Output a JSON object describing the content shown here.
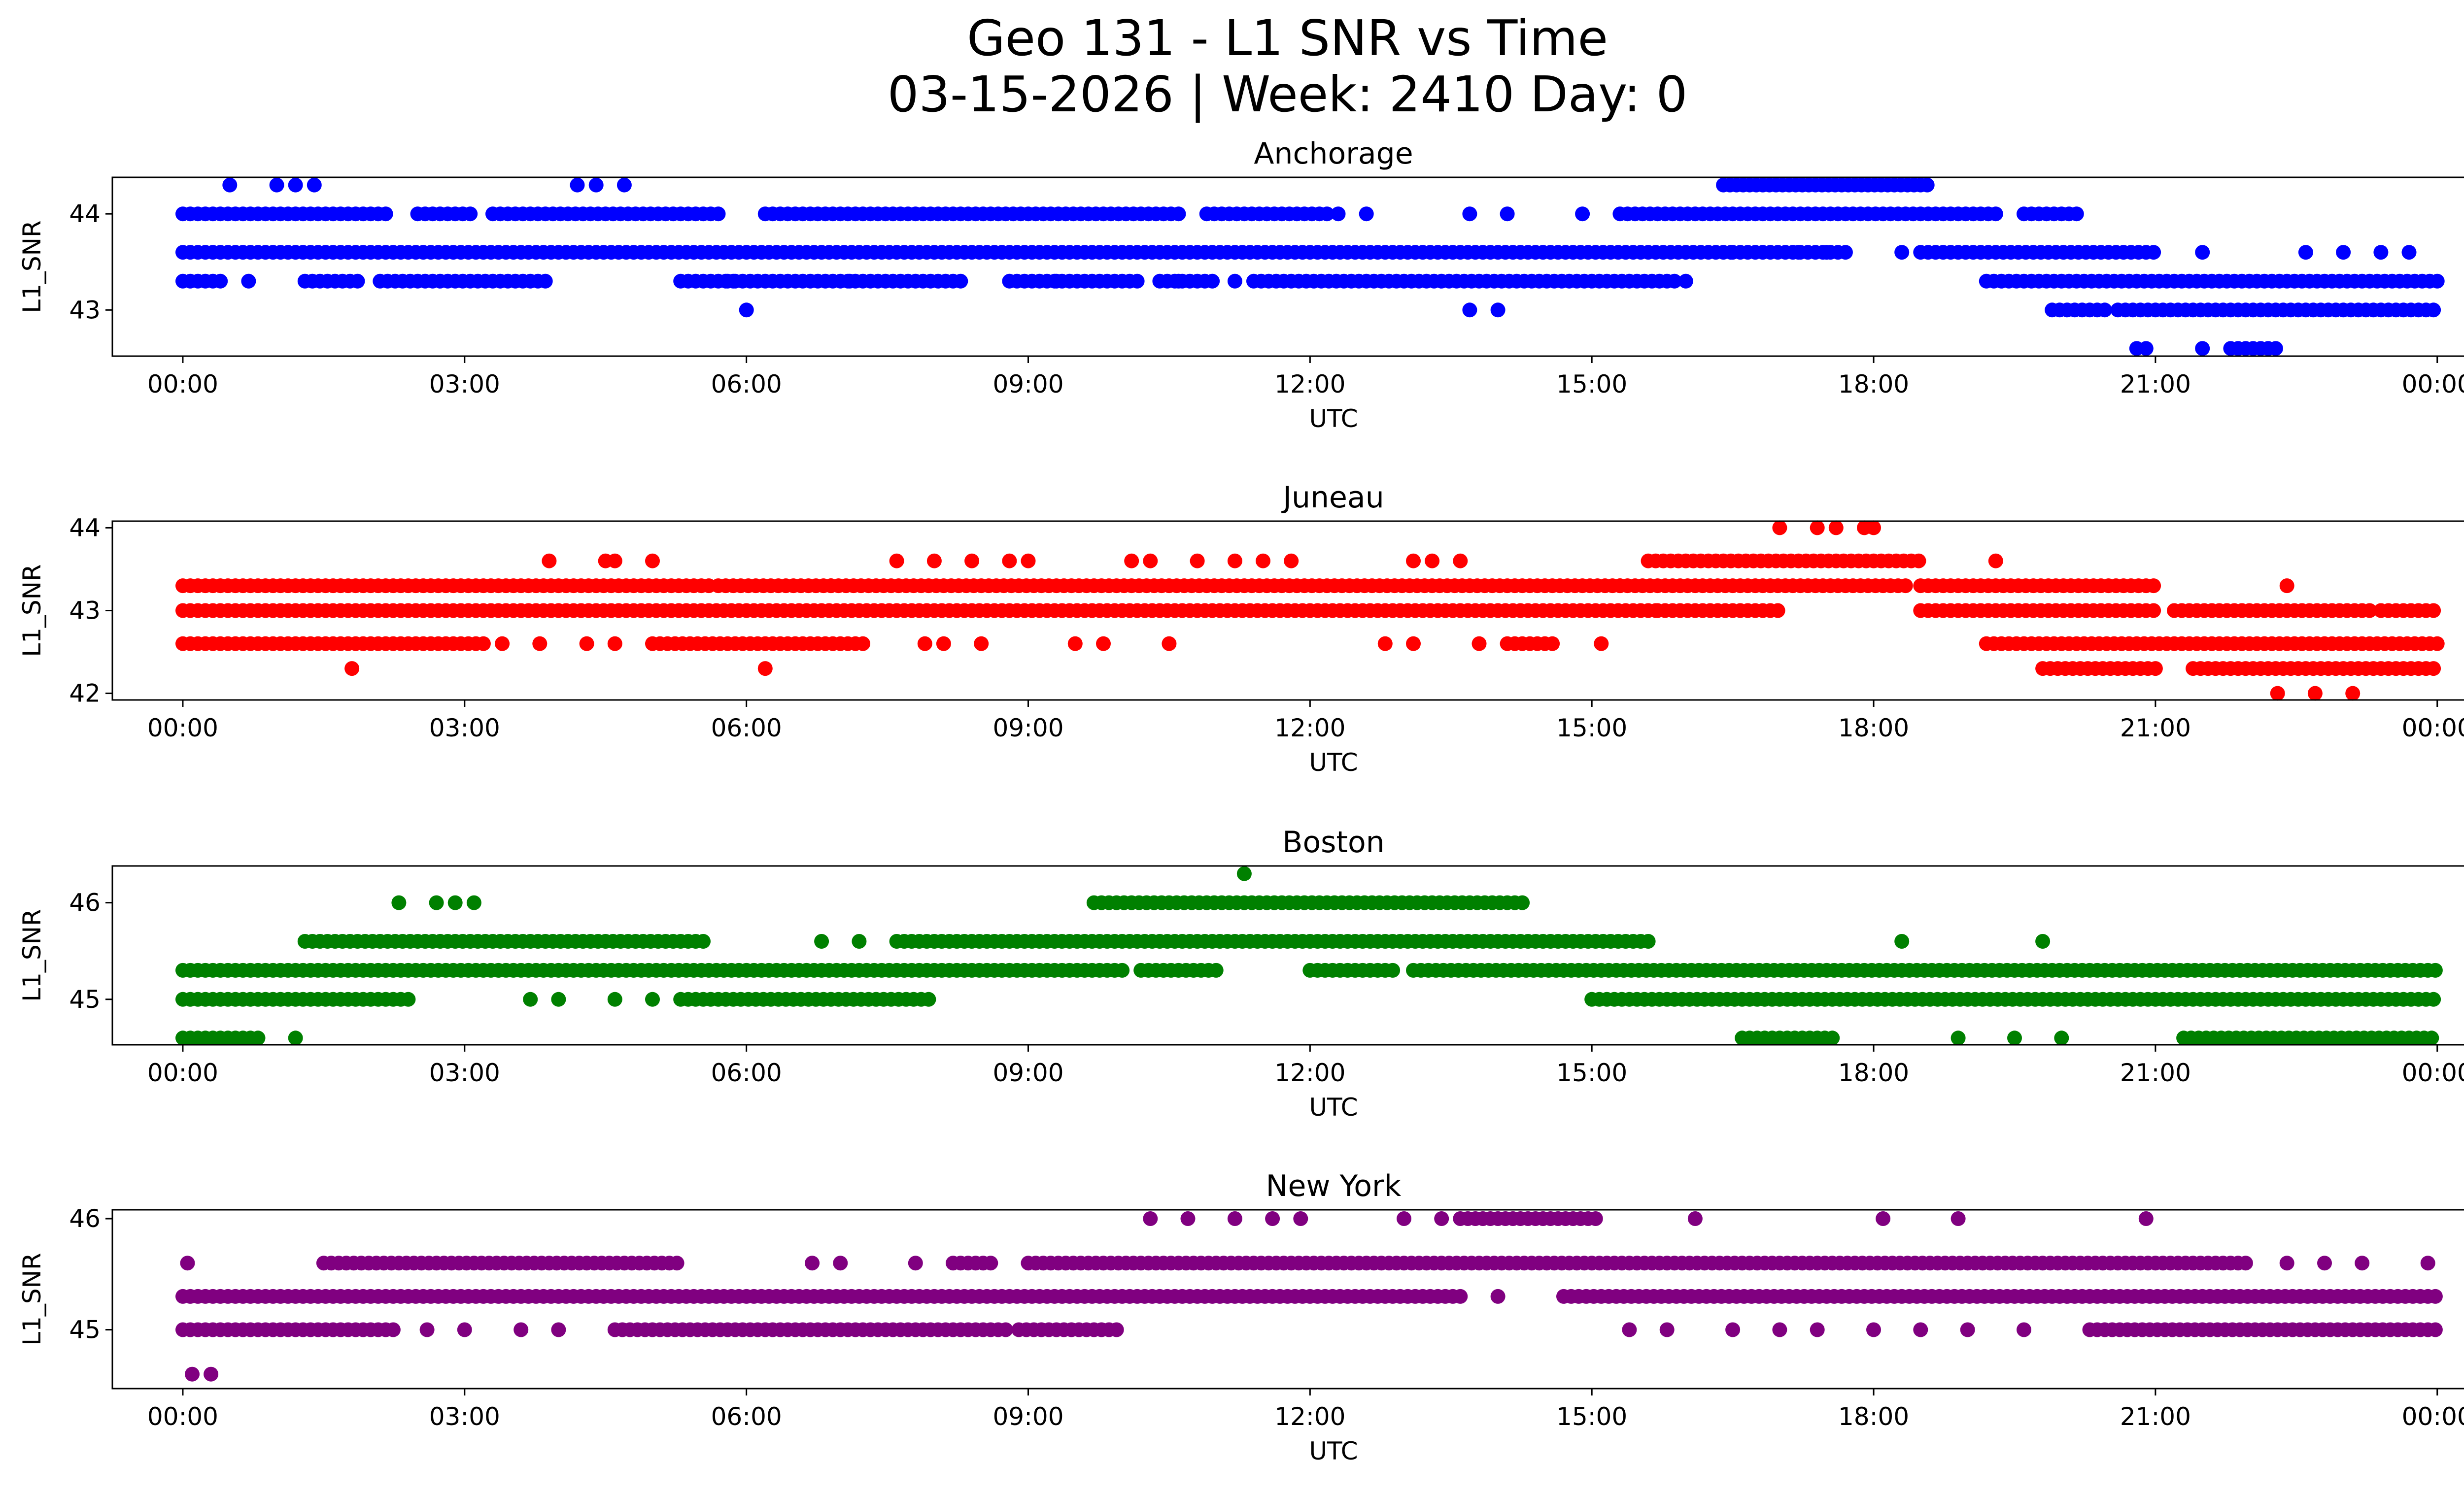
{
  "figure": {
    "title_line1": "Geo 131 - L1 SNR vs Time",
    "title_line2": "03-15-2026 | Week: 2410 Day: 0"
  },
  "chart_data": [
    {
      "type": "scatter",
      "title": "Anchorage",
      "xlabel": "UTC",
      "ylabel": "L1_SNR",
      "color": "#0000ff",
      "xlim": [
        -0.75,
        25.25
      ],
      "ylim": [
        42.52,
        44.38
      ],
      "yticks": [
        43,
        44
      ],
      "ytick_labels": [
        "43",
        "44"
      ],
      "xticks": [
        0,
        3,
        6,
        9,
        12,
        15,
        18,
        21,
        24
      ],
      "xtick_labels": [
        "00:00",
        "03:00",
        "06:00",
        "09:00",
        "12:00",
        "15:00",
        "18:00",
        "21:00",
        "00:00"
      ],
      "bands": [
        {
          "y": 43.6,
          "ranges": [
            [
              0.0,
              16.5
            ],
            [
              16.5,
              17.7
            ],
            [
              18.5,
              21.0
            ]
          ],
          "spacing": 0.08
        },
        {
          "y": 44.0,
          "ranges": [
            [
              0.0,
              2.2
            ],
            [
              2.5,
              3.1
            ],
            [
              3.3,
              5.7
            ],
            [
              6.2,
              10.6
            ],
            [
              10.9,
              12.2
            ],
            [
              15.3,
              19.3
            ],
            [
              19.6,
              20.2
            ]
          ],
          "spacing": 0.08
        },
        {
          "y": 43.3,
          "ranges": [
            [
              0.0,
              0.4
            ],
            [
              1.3,
              1.9
            ],
            [
              2.1,
              3.9
            ],
            [
              5.3,
              5.9
            ],
            [
              5.8,
              8.3
            ],
            [
              8.8,
              10.2
            ],
            [
              10.4,
              11.0
            ],
            [
              11.4,
              15.9
            ],
            [
              19.2,
              24.0
            ]
          ],
          "spacing": 0.08
        },
        {
          "y": 44.3,
          "ranges": [
            [
              16.4,
              18.6
            ]
          ],
          "spacing": 0.07
        },
        {
          "y": 43.0,
          "ranges": [
            [
              19.9,
              20.5
            ],
            [
              20.6,
              24.0
            ]
          ],
          "spacing": 0.08
        },
        {
          "y": 42.6,
          "ranges": [
            [
              21.8,
              22.3
            ]
          ],
          "spacing": 0.08
        }
      ],
      "points": [
        [
          0.5,
          44.3
        ],
        [
          1.0,
          44.3
        ],
        [
          1.2,
          44.3
        ],
        [
          1.4,
          44.3
        ],
        [
          4.2,
          44.3
        ],
        [
          4.4,
          44.3
        ],
        [
          4.7,
          44.3
        ],
        [
          0.7,
          43.3
        ],
        [
          6.0,
          43.0
        ],
        [
          13.7,
          43.0
        ],
        [
          14.0,
          43.0
        ],
        [
          13.7,
          44.0
        ],
        [
          14.1,
          44.0
        ],
        [
          12.6,
          44.0
        ],
        [
          12.3,
          44.0
        ],
        [
          14.9,
          44.0
        ],
        [
          17.2,
          43.6
        ],
        [
          17.5,
          43.6
        ],
        [
          18.3,
          43.6
        ],
        [
          21.5,
          43.6
        ],
        [
          22.6,
          43.6
        ],
        [
          23.0,
          43.6
        ],
        [
          23.4,
          43.6
        ],
        [
          23.7,
          43.6
        ],
        [
          20.8,
          42.6
        ],
        [
          20.9,
          42.6
        ],
        [
          21.5,
          42.6
        ],
        [
          11.2,
          43.3
        ],
        [
          16.0,
          43.3
        ],
        [
          10.6,
          43.3
        ],
        [
          9.3,
          43.3
        ],
        [
          7.1,
          43.3
        ]
      ]
    },
    {
      "type": "scatter",
      "title": "Juneau",
      "xlabel": "UTC",
      "ylabel": "L1_SNR",
      "color": "#ff0000",
      "xlim": [
        -0.75,
        25.25
      ],
      "ylim": [
        41.92,
        44.08
      ],
      "yticks": [
        42,
        43,
        44
      ],
      "ytick_labels": [
        "42",
        "43",
        "44"
      ],
      "xticks": [
        0,
        3,
        6,
        9,
        12,
        15,
        18,
        21,
        24
      ],
      "xtick_labels": [
        "00:00",
        "03:00",
        "06:00",
        "09:00",
        "12:00",
        "15:00",
        "18:00",
        "21:00",
        "00:00"
      ],
      "bands": [
        {
          "y": 43.0,
          "ranges": [
            [
              0.0,
              15.7
            ],
            [
              15.7,
              17.0
            ],
            [
              18.5,
              21.0
            ],
            [
              21.2,
              23.3
            ],
            [
              23.4,
              24.0
            ]
          ],
          "spacing": 0.08
        },
        {
          "y": 43.3,
          "ranges": [
            [
              0.0,
              5.6
            ],
            [
              5.7,
              6.9
            ],
            [
              6.9,
              15.3
            ],
            [
              15.3,
              18.4
            ],
            [
              18.5,
              21.0
            ]
          ],
          "spacing": 0.08
        },
        {
          "y": 42.6,
          "ranges": [
            [
              0.0,
              3.2
            ],
            [
              5.0,
              7.3
            ],
            [
              14.1,
              14.6
            ],
            [
              19.2,
              24.0
            ]
          ],
          "spacing": 0.08
        },
        {
          "y": 43.6,
          "ranges": [
            [
              15.6,
              18.5
            ]
          ],
          "spacing": 0.08
        },
        {
          "y": 42.3,
          "ranges": [
            [
              19.8,
              21.0
            ],
            [
              21.4,
              24.0
            ]
          ],
          "spacing": 0.08
        }
      ],
      "points": [
        [
          3.9,
          43.6
        ],
        [
          4.5,
          43.6
        ],
        [
          4.6,
          43.6
        ],
        [
          5.0,
          43.6
        ],
        [
          7.6,
          43.6
        ],
        [
          8.0,
          43.6
        ],
        [
          8.4,
          43.6
        ],
        [
          8.8,
          43.6
        ],
        [
          9.0,
          43.6
        ],
        [
          10.1,
          43.6
        ],
        [
          10.3,
          43.6
        ],
        [
          10.8,
          43.6
        ],
        [
          11.2,
          43.6
        ],
        [
          11.5,
          43.6
        ],
        [
          11.8,
          43.6
        ],
        [
          13.1,
          43.6
        ],
        [
          13.3,
          43.6
        ],
        [
          13.6,
          43.6
        ],
        [
          19.3,
          43.6
        ],
        [
          17.0,
          44.0
        ],
        [
          17.4,
          44.0
        ],
        [
          17.6,
          44.0
        ],
        [
          17.9,
          44.0
        ],
        [
          18.0,
          44.0
        ],
        [
          22.4,
          43.3
        ],
        [
          1.8,
          42.3
        ],
        [
          6.2,
          42.3
        ],
        [
          22.3,
          42.0
        ],
        [
          22.7,
          42.0
        ],
        [
          23.1,
          42.0
        ],
        [
          3.4,
          42.6
        ],
        [
          3.8,
          42.6
        ],
        [
          4.3,
          42.6
        ],
        [
          4.6,
          42.6
        ],
        [
          8.1,
          42.6
        ],
        [
          9.5,
          42.6
        ],
        [
          9.8,
          42.6
        ],
        [
          10.5,
          42.6
        ],
        [
          12.8,
          42.6
        ],
        [
          13.1,
          42.6
        ],
        [
          13.8,
          42.6
        ],
        [
          15.1,
          42.6
        ],
        [
          8.5,
          42.6
        ],
        [
          7.9,
          42.6
        ]
      ]
    },
    {
      "type": "scatter",
      "title": "Boston",
      "xlabel": "UTC",
      "ylabel": "L1_SNR",
      "color": "#008000",
      "xlim": [
        -0.75,
        25.25
      ],
      "ylim": [
        44.53,
        46.38
      ],
      "yticks": [
        45,
        46
      ],
      "ytick_labels": [
        "45",
        "46"
      ],
      "xticks": [
        0,
        3,
        6,
        9,
        12,
        15,
        18,
        21,
        24
      ],
      "xtick_labels": [
        "00:00",
        "03:00",
        "06:00",
        "09:00",
        "12:00",
        "15:00",
        "18:00",
        "21:00",
        "00:00"
      ],
      "bands": [
        {
          "y": 45.3,
          "ranges": [
            [
              0.0,
              10.0
            ],
            [
              10.2,
              11.0
            ],
            [
              12.0,
              12.9
            ],
            [
              13.1,
              24.0
            ]
          ],
          "spacing": 0.08
        },
        {
          "y": 45.6,
          "ranges": [
            [
              1.3,
              5.6
            ],
            [
              7.6,
              15.6
            ]
          ],
          "spacing": 0.08
        },
        {
          "y": 45.0,
          "ranges": [
            [
              0.0,
              2.4
            ],
            [
              5.3,
              8.0
            ],
            [
              15.0,
              24.0
            ]
          ],
          "spacing": 0.08
        },
        {
          "y": 46.0,
          "ranges": [
            [
              9.7,
              14.3
            ]
          ],
          "spacing": 0.08
        },
        {
          "y": 44.6,
          "ranges": [
            [
              0.0,
              0.8
            ],
            [
              16.6,
              17.6
            ],
            [
              21.3,
              24.0
            ]
          ],
          "spacing": 0.08
        }
      ],
      "points": [
        [
          2.3,
          46.0
        ],
        [
          2.7,
          46.0
        ],
        [
          2.9,
          46.0
        ],
        [
          3.1,
          46.0
        ],
        [
          11.3,
          46.3
        ],
        [
          6.8,
          45.6
        ],
        [
          7.2,
          45.6
        ],
        [
          18.3,
          45.6
        ],
        [
          19.8,
          45.6
        ],
        [
          1.2,
          44.6
        ],
        [
          18.9,
          44.6
        ],
        [
          19.5,
          44.6
        ],
        [
          20.0,
          44.6
        ],
        [
          3.7,
          45.0
        ],
        [
          4.0,
          45.0
        ],
        [
          4.6,
          45.0
        ],
        [
          5.0,
          45.0
        ]
      ]
    },
    {
      "type": "scatter",
      "title": "New York",
      "xlabel": "UTC",
      "ylabel": "L1_SNR",
      "color": "#800080",
      "xlim": [
        -0.75,
        25.25
      ],
      "ylim": [
        44.47,
        46.08
      ],
      "yticks": [
        45,
        46
      ],
      "ytick_labels": [
        "45",
        "46"
      ],
      "xticks": [
        0,
        3,
        6,
        9,
        12,
        15,
        18,
        21,
        24
      ],
      "xtick_labels": [
        "00:00",
        "03:00",
        "06:00",
        "09:00",
        "12:00",
        "15:00",
        "18:00",
        "21:00",
        "00:00"
      ],
      "bands": [
        {
          "y": 45.3,
          "ranges": [
            [
              0.0,
              13.6
            ],
            [
              14.7,
              24.0
            ]
          ],
          "spacing": 0.08
        },
        {
          "y": 45.0,
          "ranges": [
            [
              0.0,
              2.3
            ],
            [
              4.6,
              8.8
            ],
            [
              8.9,
              10.0
            ],
            [
              20.3,
              24.0
            ]
          ],
          "spacing": 0.08
        },
        {
          "y": 45.6,
          "ranges": [
            [
              1.5,
              5.3
            ],
            [
              8.2,
              8.6
            ],
            [
              9.0,
              22.0
            ]
          ],
          "spacing": 0.08
        },
        {
          "y": 46.0,
          "ranges": [
            [
              13.6,
              15.1
            ]
          ],
          "spacing": 0.08
        }
      ],
      "points": [
        [
          0.05,
          45.6
        ],
        [
          6.7,
          45.6
        ],
        [
          7.0,
          45.6
        ],
        [
          7.8,
          45.6
        ],
        [
          22.4,
          45.6
        ],
        [
          22.8,
          45.6
        ],
        [
          23.2,
          45.6
        ],
        [
          23.9,
          45.6
        ],
        [
          10.3,
          46.0
        ],
        [
          10.7,
          46.0
        ],
        [
          11.2,
          46.0
        ],
        [
          11.6,
          46.0
        ],
        [
          11.9,
          46.0
        ],
        [
          13.0,
          46.0
        ],
        [
          13.4,
          46.0
        ],
        [
          16.1,
          46.0
        ],
        [
          18.1,
          46.0
        ],
        [
          18.9,
          46.0
        ],
        [
          20.9,
          46.0
        ],
        [
          14.0,
          45.3
        ],
        [
          2.6,
          45.0
        ],
        [
          3.0,
          45.0
        ],
        [
          3.6,
          45.0
        ],
        [
          4.0,
          45.0
        ],
        [
          15.4,
          45.0
        ],
        [
          15.8,
          45.0
        ],
        [
          16.5,
          45.0
        ],
        [
          17.0,
          45.0
        ],
        [
          17.4,
          45.0
        ],
        [
          18.0,
          45.0
        ],
        [
          18.5,
          45.0
        ],
        [
          19.0,
          45.0
        ],
        [
          19.6,
          45.0
        ],
        [
          0.1,
          44.6
        ],
        [
          0.3,
          44.6
        ]
      ]
    }
  ]
}
